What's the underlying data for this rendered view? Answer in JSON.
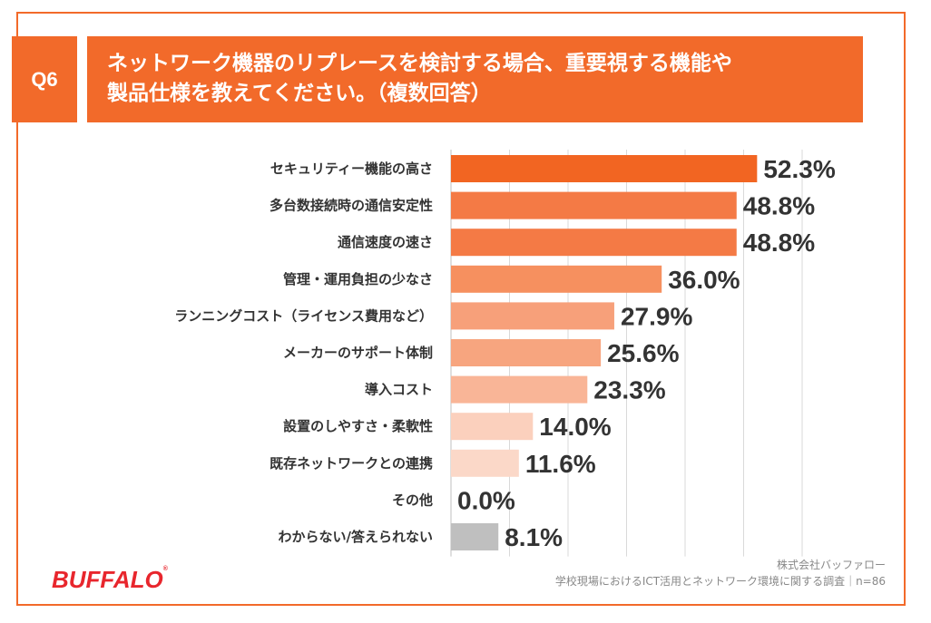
{
  "question": {
    "badge": "Q6",
    "line1": "ネットワーク機器のリプレースを検討する場合、重要視する機能や",
    "line2": "製品仕様を教えてください。（複数回答）"
  },
  "chart_data": {
    "type": "bar",
    "orientation": "horizontal",
    "categories": [
      "セキュリティー機能の高さ",
      "多台数接続時の通信安定性",
      "通信速度の速さ",
      "管理・運用負担の少なさ",
      "ランニングコスト（ライセンス費用など）",
      "メーカーのサポート体制",
      "導入コスト",
      "設置のしやすさ・柔軟性",
      "既存ネットワークとの連携",
      "その他",
      "わからない/答えられない"
    ],
    "values": [
      52.3,
      48.8,
      48.8,
      36.0,
      27.9,
      25.6,
      23.3,
      14.0,
      11.6,
      0.0,
      8.1
    ],
    "value_labels": [
      "52.3%",
      "48.8%",
      "48.8%",
      "36.0%",
      "27.9%",
      "25.6%",
      "23.3%",
      "14.0%",
      "11.6%",
      "0.0%",
      "8.1%"
    ],
    "colors": [
      "#f26522",
      "#f47a45",
      "#f47a45",
      "#f6905f",
      "#f7a07a",
      "#f7a57f",
      "#f9b597",
      "#fbd0bd",
      "#fbd8c8",
      "#fbe3d8",
      "#bfbfbf"
    ],
    "xlim": [
      0,
      60
    ],
    "grid": true
  },
  "footer": {
    "brand": "BUFFALO",
    "trademark": "®",
    "company": "株式会社バッファロー",
    "survey": "学校現場におけるICT活用とネットワーク環境に関する調査｜n=86"
  }
}
